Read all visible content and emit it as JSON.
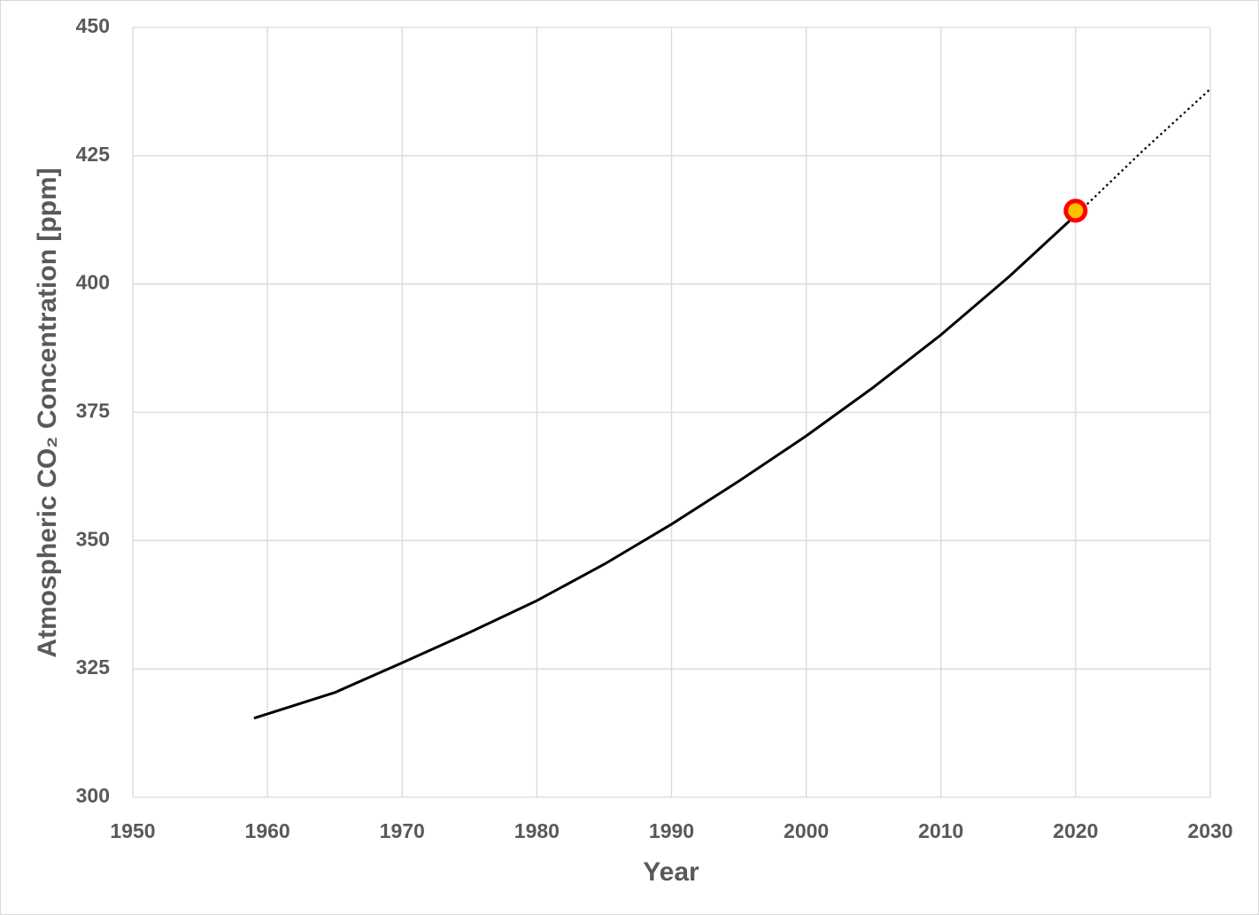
{
  "chart_data": {
    "type": "line",
    "x_label": "Year",
    "y_label": "Atmospheric CO₂ Concentration [ppm]",
    "xlim": [
      1950,
      2030
    ],
    "xticks": [
      1950,
      1960,
      1970,
      1980,
      1990,
      2000,
      2010,
      2020,
      2030
    ],
    "ylim": [
      300,
      450
    ],
    "yticks": [
      300,
      325,
      350,
      375,
      400,
      425,
      450
    ],
    "grid": true,
    "series": [
      {
        "color": "#000000",
        "style": "solid",
        "x": [
          1959,
          1965,
          1970,
          1975,
          1980,
          1985,
          1990,
          1995,
          2000,
          2005,
          2010,
          2015,
          2020
        ],
        "values": [
          315.4,
          320.4,
          326.2,
          332.1,
          338.3,
          345.4,
          353.2,
          361.6,
          370.4,
          379.9,
          390.1,
          401.3,
          413.4
        ]
      },
      {
        "color": "#000000",
        "style": "dotted",
        "x": [
          2020,
          2025,
          2030
        ],
        "values": [
          413.4,
          426.0,
          438.0
        ]
      }
    ],
    "marker": {
      "x": 2020,
      "y": 414.3,
      "fill": "#ffc000",
      "edge": "#ff0000"
    }
  }
}
